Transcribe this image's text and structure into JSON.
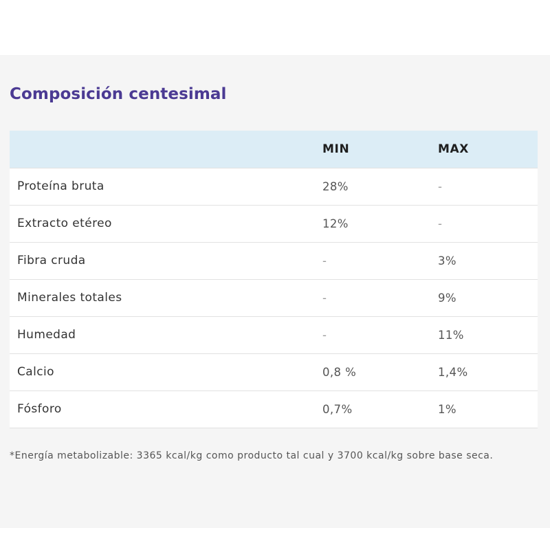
{
  "section": {
    "title": "Composición centesimal"
  },
  "table": {
    "headers": [
      "",
      "MIN",
      "MAX"
    ],
    "rows": [
      {
        "name": "Proteína bruta",
        "min": "28%",
        "max": "-"
      },
      {
        "name": "Extracto etéreo",
        "min": "12%",
        "max": "-"
      },
      {
        "name": "Fibra cruda",
        "min": "-",
        "max": "3%"
      },
      {
        "name": "Minerales totales",
        "min": "-",
        "max": "9%"
      },
      {
        "name": "Humedad",
        "min": "-",
        "max": "11%"
      },
      {
        "name": "Calcio",
        "min": "0,8 %",
        "max": "1,4%"
      },
      {
        "name": "Fósforo",
        "min": "0,7%",
        "max": "1%"
      }
    ]
  },
  "footnote": "*Energía metabolizable: 3365 kcal/kg como producto tal cual y 3700 kcal/kg sobre base seca.",
  "colors": {
    "title": "#4b3a93",
    "header_bg": "#dcedf6",
    "panel_bg": "#f5f5f5"
  }
}
